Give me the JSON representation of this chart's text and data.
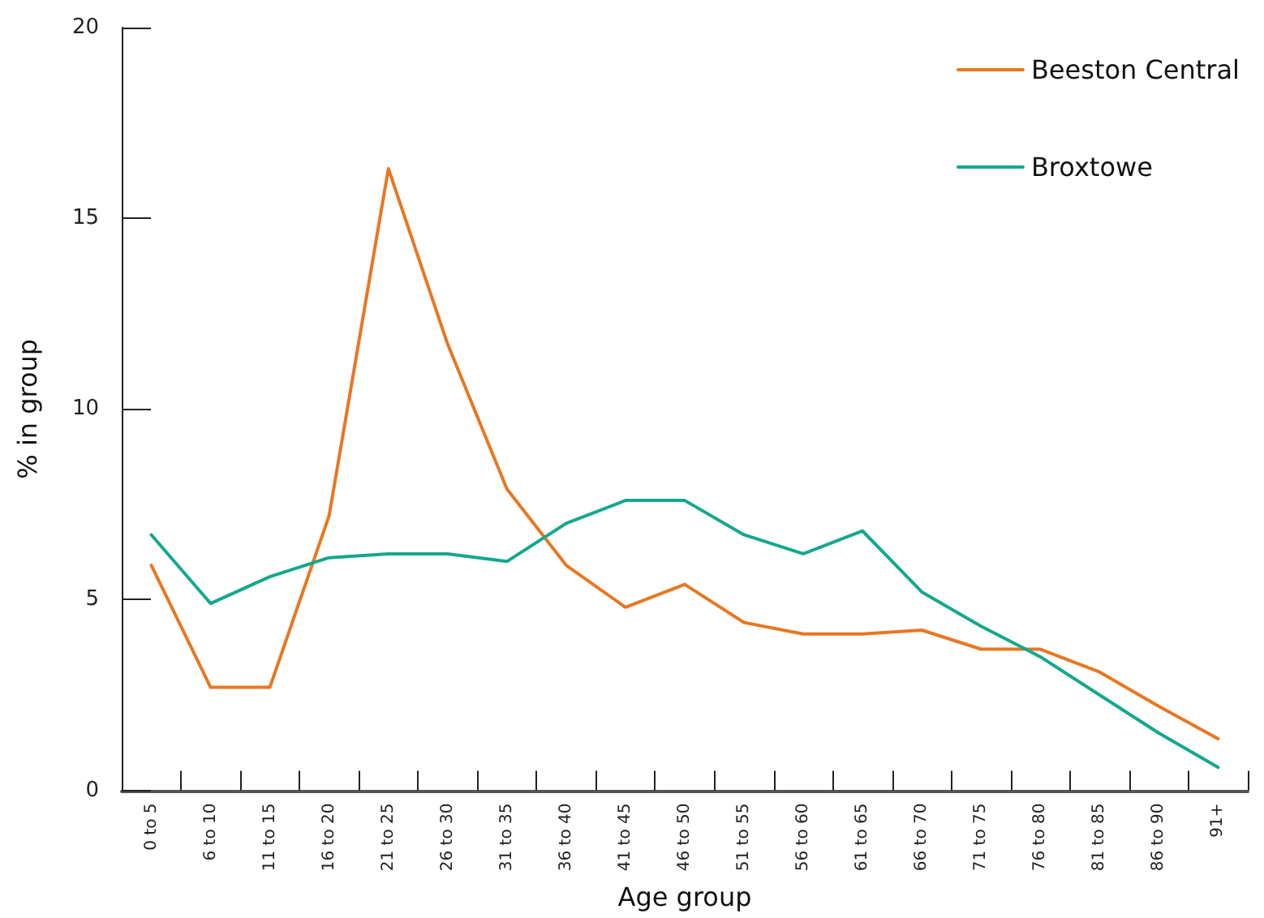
{
  "chart_data": {
    "type": "line",
    "xlabel": "Age group",
    "ylabel": "% in group",
    "categories": [
      "0 to 5",
      "6 to 10",
      "11 to 15",
      "16 to 20",
      "21 to 25",
      "26 to 30",
      "31 to 35",
      "36 to 40",
      "41 to 45",
      "46 to 50",
      "51 to 55",
      "56 to 60",
      "61 to 65",
      "66 to 70",
      "71 to 75",
      "76 to 80",
      "81 to 85",
      "86 to 90",
      "91+"
    ],
    "series": [
      {
        "name": "Beeston Central",
        "color": "#e87722",
        "values": [
          5.9,
          2.7,
          2.7,
          7.2,
          16.3,
          11.7,
          7.9,
          5.9,
          4.8,
          5.4,
          4.4,
          4.1,
          4.1,
          4.2,
          3.7,
          3.7,
          3.1,
          2.2,
          1.35
        ]
      },
      {
        "name": "Broxtowe",
        "color": "#14a88e",
        "values": [
          6.7,
          4.9,
          5.6,
          6.1,
          6.2,
          6.2,
          6.0,
          7.0,
          7.6,
          7.6,
          6.7,
          6.2,
          6.8,
          5.2,
          4.3,
          3.5,
          2.5,
          1.5,
          0.6
        ]
      }
    ],
    "ylim": [
      0,
      20
    ],
    "yticks": [
      0,
      5,
      10,
      15,
      20
    ],
    "grid": false,
    "legend": "top right",
    "marker": "none",
    "line_style": "solid"
  }
}
